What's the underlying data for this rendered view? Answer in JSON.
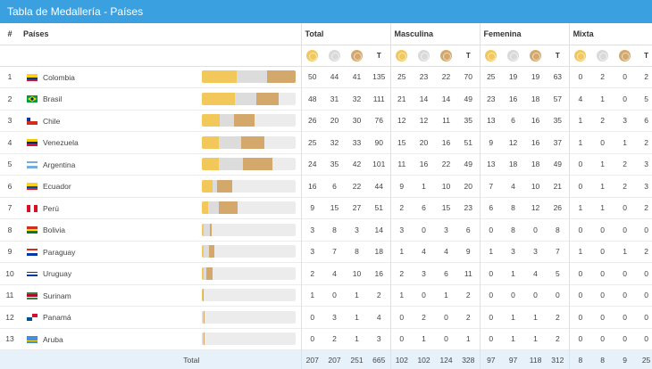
{
  "title": "Tabla de Medallería - Países",
  "columns": {
    "num": "#",
    "country": "Países",
    "groups": [
      "Total",
      "Masculina",
      "Femenina",
      "Mixta"
    ],
    "t_label": "T"
  },
  "medal_icons": [
    "gold-medal-icon",
    "silver-medal-icon",
    "bronze-medal-icon"
  ],
  "colors": {
    "header": "#3aa0e0",
    "gold": "#f2c85b",
    "silver": "#dcdcdc",
    "bronze": "#d4a76a",
    "footer": "#e6f1fa"
  },
  "rows": [
    {
      "rank": "1",
      "country": "Colombia",
      "flag": "colombia",
      "total": [
        "50",
        "44",
        "41",
        "135"
      ],
      "masc": [
        "25",
        "23",
        "22",
        "70"
      ],
      "fem": [
        "25",
        "19",
        "19",
        "63"
      ],
      "mix": [
        "0",
        "2",
        "0",
        "2"
      ]
    },
    {
      "rank": "2",
      "country": "Brasil",
      "flag": "brasil",
      "total": [
        "48",
        "31",
        "32",
        "111"
      ],
      "masc": [
        "21",
        "14",
        "14",
        "49"
      ],
      "fem": [
        "23",
        "16",
        "18",
        "57"
      ],
      "mix": [
        "4",
        "1",
        "0",
        "5"
      ]
    },
    {
      "rank": "3",
      "country": "Chile",
      "flag": "chile",
      "total": [
        "26",
        "20",
        "30",
        "76"
      ],
      "masc": [
        "12",
        "12",
        "11",
        "35"
      ],
      "fem": [
        "13",
        "6",
        "16",
        "35"
      ],
      "mix": [
        "1",
        "2",
        "3",
        "6"
      ]
    },
    {
      "rank": "4",
      "country": "Venezuela",
      "flag": "venezuela",
      "total": [
        "25",
        "32",
        "33",
        "90"
      ],
      "masc": [
        "15",
        "20",
        "16",
        "51"
      ],
      "fem": [
        "9",
        "12",
        "16",
        "37"
      ],
      "mix": [
        "1",
        "0",
        "1",
        "2"
      ]
    },
    {
      "rank": "5",
      "country": "Argentina",
      "flag": "argentina",
      "total": [
        "24",
        "35",
        "42",
        "101"
      ],
      "masc": [
        "11",
        "16",
        "22",
        "49"
      ],
      "fem": [
        "13",
        "18",
        "18",
        "49"
      ],
      "mix": [
        "0",
        "1",
        "2",
        "3"
      ]
    },
    {
      "rank": "6",
      "country": "Ecuador",
      "flag": "ecuador",
      "total": [
        "16",
        "6",
        "22",
        "44"
      ],
      "masc": [
        "9",
        "1",
        "10",
        "20"
      ],
      "fem": [
        "7",
        "4",
        "10",
        "21"
      ],
      "mix": [
        "0",
        "1",
        "2",
        "3"
      ]
    },
    {
      "rank": "7",
      "country": "Perú",
      "flag": "peru",
      "total": [
        "9",
        "15",
        "27",
        "51"
      ],
      "masc": [
        "2",
        "6",
        "15",
        "23"
      ],
      "fem": [
        "6",
        "8",
        "12",
        "26"
      ],
      "mix": [
        "1",
        "1",
        "0",
        "2"
      ]
    },
    {
      "rank": "8",
      "country": "Bolivia",
      "flag": "bolivia",
      "total": [
        "3",
        "8",
        "3",
        "14"
      ],
      "masc": [
        "3",
        "0",
        "3",
        "6"
      ],
      "fem": [
        "0",
        "8",
        "0",
        "8"
      ],
      "mix": [
        "0",
        "0",
        "0",
        "0"
      ]
    },
    {
      "rank": "9",
      "country": "Paraguay",
      "flag": "paraguay",
      "total": [
        "3",
        "7",
        "8",
        "18"
      ],
      "masc": [
        "1",
        "4",
        "4",
        "9"
      ],
      "fem": [
        "1",
        "3",
        "3",
        "7"
      ],
      "mix": [
        "1",
        "0",
        "1",
        "2"
      ]
    },
    {
      "rank": "10",
      "country": "Uruguay",
      "flag": "uruguay",
      "total": [
        "2",
        "4",
        "10",
        "16"
      ],
      "masc": [
        "2",
        "3",
        "6",
        "11"
      ],
      "fem": [
        "0",
        "1",
        "4",
        "5"
      ],
      "mix": [
        "0",
        "0",
        "0",
        "0"
      ]
    },
    {
      "rank": "11",
      "country": "Surinam",
      "flag": "surinam",
      "total": [
        "1",
        "0",
        "1",
        "2"
      ],
      "masc": [
        "1",
        "0",
        "1",
        "2"
      ],
      "fem": [
        "0",
        "0",
        "0",
        "0"
      ],
      "mix": [
        "0",
        "0",
        "0",
        "0"
      ]
    },
    {
      "rank": "12",
      "country": "Panamá",
      "flag": "panama",
      "total": [
        "0",
        "3",
        "1",
        "4"
      ],
      "masc": [
        "0",
        "2",
        "0",
        "2"
      ],
      "fem": [
        "0",
        "1",
        "1",
        "2"
      ],
      "mix": [
        "0",
        "0",
        "0",
        "0"
      ]
    },
    {
      "rank": "13",
      "country": "Aruba",
      "flag": "aruba",
      "total": [
        "0",
        "2",
        "1",
        "3"
      ],
      "masc": [
        "0",
        "1",
        "0",
        "1"
      ],
      "fem": [
        "0",
        "1",
        "1",
        "2"
      ],
      "mix": [
        "0",
        "0",
        "0",
        "0"
      ]
    }
  ],
  "totals": {
    "label": "Total",
    "total": [
      "207",
      "207",
      "251",
      "665"
    ],
    "masc": [
      "102",
      "102",
      "124",
      "328"
    ],
    "fem": [
      "97",
      "97",
      "118",
      "312"
    ],
    "mix": [
      "8",
      "8",
      "9",
      "25"
    ]
  }
}
